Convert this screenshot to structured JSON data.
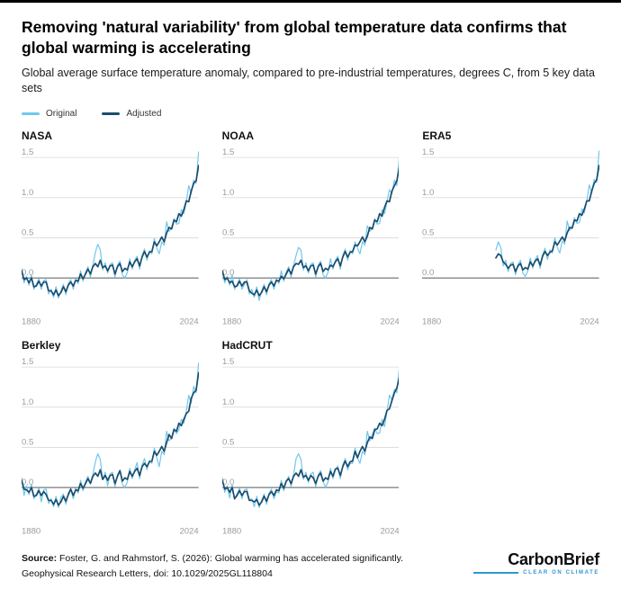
{
  "header": {
    "title": "Removing 'natural variability' from global temperature data confirms that global warming is accelerating",
    "subtitle": "Global average surface temperature anomaly, compared to pre-industrial temperatures, degrees C, from 5 key data sets"
  },
  "legend": [
    {
      "label": "Original",
      "color": "#72c7ec"
    },
    {
      "label": "Adjusted",
      "color": "#1b4d6e"
    }
  ],
  "footer": {
    "source_label": "Source:",
    "source_text": " Foster, G. and Rahmstorf, S. (2026): Global warming has accelerated significantly. Geophysical Research Letters, doi: 10.1029/2025GL118804",
    "logo_text": "CarbonBrief",
    "logo_tagline": "CLEAR ON CLIMATE",
    "brand_blue": "#2f96d2"
  },
  "chart_data": {
    "type": "line",
    "ylabel": "Temperature anomaly vs pre-industrial (degrees C)",
    "ylim": [
      -0.42,
      1.58
    ],
    "yticks": [
      0.0,
      0.5,
      1.0,
      1.5
    ],
    "xlim": [
      1880,
      2024
    ],
    "xtick_labels": [
      "1880",
      "2024"
    ],
    "grid": true,
    "legend_position": "top-left",
    "colors": {
      "original": "#72c7ec",
      "adjusted": "#1b4d6e",
      "grid_line": "#d9d9d9",
      "zero_line": "#55595c",
      "tick_text": "#9b9b9b"
    },
    "years_full": [
      1880,
      1882,
      1884,
      1886,
      1888,
      1890,
      1892,
      1894,
      1896,
      1898,
      1900,
      1902,
      1904,
      1906,
      1908,
      1910,
      1912,
      1914,
      1916,
      1918,
      1920,
      1922,
      1924,
      1926,
      1928,
      1930,
      1932,
      1934,
      1936,
      1938,
      1940,
      1942,
      1944,
      1946,
      1948,
      1950,
      1952,
      1954,
      1956,
      1958,
      1960,
      1962,
      1964,
      1966,
      1968,
      1970,
      1972,
      1974,
      1976,
      1978,
      1980,
      1982,
      1984,
      1986,
      1988,
      1990,
      1992,
      1994,
      1996,
      1998,
      2000,
      2002,
      2004,
      2006,
      2008,
      2010,
      2012,
      2014,
      2016,
      2018,
      2020,
      2022,
      2024
    ],
    "years_era5": [
      1940,
      1942,
      1944,
      1946,
      1948,
      1950,
      1952,
      1954,
      1956,
      1958,
      1960,
      1962,
      1964,
      1966,
      1968,
      1970,
      1972,
      1974,
      1976,
      1978,
      1980,
      1982,
      1984,
      1986,
      1988,
      1990,
      1992,
      1994,
      1996,
      1998,
      2000,
      2002,
      2004,
      2006,
      2008,
      2010,
      2012,
      2014,
      2016,
      2018,
      2020,
      2022,
      2024
    ],
    "panels": [
      {
        "title": "NASA",
        "years_key": "full",
        "original": [
          0.12,
          -0.06,
          0.02,
          -0.09,
          0.04,
          -0.14,
          -0.08,
          -0.01,
          -0.14,
          -0.03,
          -0.02,
          -0.2,
          -0.14,
          -0.24,
          -0.11,
          -0.25,
          -0.16,
          -0.08,
          -0.21,
          -0.07,
          -0.02,
          -0.14,
          -0.01,
          -0.07,
          0.09,
          -0.04,
          0.07,
          0.14,
          0.01,
          0.16,
          0.32,
          0.42,
          0.35,
          0.1,
          0.19,
          0.06,
          0.17,
          0.19,
          0.01,
          0.16,
          0.21,
          0.04,
          0.0,
          0.07,
          0.24,
          0.11,
          0.22,
          0.27,
          0.11,
          0.28,
          0.36,
          0.22,
          0.34,
          0.3,
          0.49,
          0.37,
          0.3,
          0.45,
          0.41,
          0.7,
          0.58,
          0.62,
          0.74,
          0.67,
          0.68,
          0.85,
          0.8,
          0.95,
          1.15,
          1.05,
          1.22,
          1.18,
          1.57
        ],
        "adjusted": [
          0.09,
          -0.02,
          0.0,
          -0.06,
          0.0,
          -0.11,
          -0.1,
          -0.04,
          -0.1,
          -0.05,
          -0.05,
          -0.16,
          -0.16,
          -0.21,
          -0.15,
          -0.22,
          -0.18,
          -0.11,
          -0.17,
          -0.09,
          -0.05,
          -0.1,
          -0.03,
          -0.04,
          0.05,
          -0.01,
          0.05,
          0.11,
          0.05,
          0.14,
          0.18,
          0.14,
          0.22,
          0.13,
          0.15,
          0.09,
          0.15,
          0.16,
          0.05,
          0.14,
          0.18,
          0.08,
          0.12,
          0.1,
          0.2,
          0.14,
          0.2,
          0.24,
          0.15,
          0.26,
          0.33,
          0.26,
          0.32,
          0.33,
          0.45,
          0.4,
          0.45,
          0.51,
          0.45,
          0.56,
          0.63,
          0.61,
          0.72,
          0.7,
          0.8,
          0.77,
          0.85,
          0.96,
          0.95,
          1.08,
          1.18,
          1.21,
          1.4
        ]
      },
      {
        "title": "NOAA",
        "years_key": "full",
        "original": [
          0.08,
          -0.06,
          0.02,
          -0.09,
          0.04,
          -0.14,
          -0.08,
          -0.01,
          -0.14,
          -0.08,
          -0.02,
          -0.2,
          -0.14,
          -0.24,
          -0.11,
          -0.28,
          -0.16,
          -0.08,
          -0.21,
          -0.07,
          -0.02,
          -0.14,
          -0.01,
          -0.07,
          0.09,
          -0.04,
          0.07,
          0.14,
          0.01,
          0.16,
          0.28,
          0.38,
          0.35,
          0.1,
          0.19,
          0.06,
          0.17,
          0.19,
          0.01,
          0.16,
          0.21,
          0.04,
          0.0,
          0.07,
          0.24,
          0.11,
          0.22,
          0.27,
          0.11,
          0.28,
          0.36,
          0.22,
          0.34,
          0.3,
          0.45,
          0.37,
          0.3,
          0.45,
          0.41,
          0.65,
          0.58,
          0.62,
          0.74,
          0.67,
          0.68,
          0.85,
          0.8,
          0.95,
          1.1,
          1.05,
          1.22,
          1.15,
          1.52
        ],
        "adjusted": [
          0.09,
          -0.02,
          0.0,
          -0.06,
          -0.04,
          -0.11,
          -0.1,
          -0.04,
          -0.1,
          -0.05,
          -0.05,
          -0.16,
          -0.19,
          -0.21,
          -0.15,
          -0.22,
          -0.18,
          -0.11,
          -0.17,
          -0.09,
          -0.05,
          -0.1,
          -0.03,
          -0.04,
          0.02,
          -0.01,
          0.05,
          0.11,
          0.05,
          0.14,
          0.18,
          0.17,
          0.22,
          0.13,
          0.15,
          0.09,
          0.15,
          0.16,
          0.05,
          0.14,
          0.18,
          0.08,
          0.12,
          0.1,
          0.16,
          0.14,
          0.2,
          0.24,
          0.15,
          0.26,
          0.33,
          0.26,
          0.32,
          0.33,
          0.41,
          0.4,
          0.45,
          0.51,
          0.45,
          0.52,
          0.63,
          0.61,
          0.72,
          0.7,
          0.8,
          0.77,
          0.88,
          0.96,
          0.95,
          1.08,
          1.15,
          1.21,
          1.38
        ]
      },
      {
        "title": "ERA5",
        "years_key": "era5",
        "original": [
          0.35,
          0.45,
          0.38,
          0.15,
          0.22,
          0.08,
          0.18,
          0.2,
          0.04,
          0.17,
          0.22,
          0.06,
          0.02,
          0.09,
          0.25,
          0.12,
          0.23,
          0.28,
          0.12,
          0.29,
          0.37,
          0.23,
          0.35,
          0.31,
          0.5,
          0.38,
          0.31,
          0.46,
          0.42,
          0.71,
          0.59,
          0.63,
          0.75,
          0.68,
          0.69,
          0.86,
          0.81,
          0.96,
          1.16,
          1.06,
          1.23,
          1.19,
          1.58
        ],
        "adjusted": [
          0.25,
          0.3,
          0.28,
          0.2,
          0.17,
          0.12,
          0.16,
          0.17,
          0.08,
          0.15,
          0.18,
          0.1,
          0.13,
          0.11,
          0.2,
          0.15,
          0.21,
          0.24,
          0.16,
          0.27,
          0.33,
          0.28,
          0.32,
          0.34,
          0.45,
          0.41,
          0.46,
          0.51,
          0.46,
          0.56,
          0.63,
          0.62,
          0.72,
          0.71,
          0.8,
          0.78,
          0.86,
          0.96,
          0.96,
          1.08,
          1.18,
          1.22,
          1.4
        ]
      },
      {
        "title": "Berkley",
        "years_key": "full",
        "original": [
          0.12,
          -0.1,
          0.02,
          -0.09,
          0.04,
          -0.14,
          -0.08,
          -0.01,
          -0.18,
          -0.03,
          -0.02,
          -0.2,
          -0.14,
          -0.24,
          -0.11,
          -0.25,
          -0.12,
          -0.08,
          -0.21,
          -0.07,
          -0.02,
          -0.14,
          -0.01,
          -0.07,
          0.09,
          -0.04,
          0.07,
          0.14,
          0.05,
          0.16,
          0.32,
          0.42,
          0.35,
          0.1,
          0.19,
          0.02,
          0.17,
          0.19,
          0.01,
          0.16,
          0.21,
          0.04,
          0.0,
          0.07,
          0.24,
          0.11,
          0.22,
          0.31,
          0.11,
          0.28,
          0.36,
          0.22,
          0.34,
          0.3,
          0.49,
          0.37,
          0.26,
          0.45,
          0.41,
          0.7,
          0.58,
          0.62,
          0.74,
          0.67,
          0.72,
          0.85,
          0.8,
          0.95,
          1.15,
          1.05,
          1.26,
          1.18,
          1.55
        ],
        "adjusted": [
          0.09,
          -0.02,
          -0.03,
          -0.06,
          0.0,
          -0.11,
          -0.1,
          -0.04,
          -0.1,
          -0.05,
          -0.09,
          -0.16,
          -0.16,
          -0.21,
          -0.15,
          -0.22,
          -0.18,
          -0.11,
          -0.17,
          -0.09,
          -0.02,
          -0.1,
          -0.03,
          -0.04,
          0.05,
          -0.01,
          0.05,
          0.11,
          0.05,
          0.14,
          0.18,
          0.14,
          0.22,
          0.1,
          0.15,
          0.09,
          0.15,
          0.16,
          0.05,
          0.14,
          0.21,
          0.08,
          0.12,
          0.1,
          0.2,
          0.14,
          0.2,
          0.24,
          0.15,
          0.26,
          0.3,
          0.26,
          0.32,
          0.33,
          0.45,
          0.4,
          0.45,
          0.51,
          0.45,
          0.56,
          0.66,
          0.61,
          0.72,
          0.7,
          0.8,
          0.77,
          0.85,
          0.92,
          0.95,
          1.11,
          1.18,
          1.21,
          1.43
        ]
      },
      {
        "title": "HadCRUT",
        "years_key": "full",
        "original": [
          0.12,
          -0.06,
          0.02,
          -0.13,
          0.04,
          -0.14,
          -0.08,
          -0.01,
          -0.14,
          -0.03,
          -0.02,
          -0.16,
          -0.14,
          -0.24,
          -0.11,
          -0.25,
          -0.16,
          -0.08,
          -0.21,
          -0.07,
          -0.02,
          -0.14,
          -0.05,
          -0.07,
          0.09,
          -0.04,
          0.07,
          0.14,
          0.01,
          0.16,
          0.36,
          0.42,
          0.35,
          0.1,
          0.19,
          0.06,
          0.17,
          0.19,
          0.01,
          0.16,
          0.21,
          0.08,
          0.0,
          0.07,
          0.24,
          0.11,
          0.22,
          0.27,
          0.11,
          0.28,
          0.36,
          0.22,
          0.3,
          0.3,
          0.49,
          0.37,
          0.3,
          0.45,
          0.41,
          0.7,
          0.58,
          0.66,
          0.74,
          0.67,
          0.68,
          0.85,
          0.76,
          0.95,
          1.15,
          1.09,
          1.22,
          1.18,
          1.5
        ],
        "adjusted": [
          0.09,
          -0.02,
          0.0,
          -0.06,
          0.0,
          -0.14,
          -0.1,
          -0.04,
          -0.1,
          -0.05,
          -0.05,
          -0.16,
          -0.16,
          -0.18,
          -0.15,
          -0.22,
          -0.18,
          -0.11,
          -0.17,
          -0.09,
          -0.05,
          -0.1,
          -0.03,
          -0.04,
          0.05,
          -0.01,
          0.08,
          0.11,
          0.05,
          0.14,
          0.18,
          0.14,
          0.22,
          0.13,
          0.15,
          0.09,
          0.15,
          0.12,
          0.05,
          0.14,
          0.18,
          0.08,
          0.12,
          0.1,
          0.2,
          0.14,
          0.23,
          0.24,
          0.15,
          0.26,
          0.33,
          0.26,
          0.32,
          0.33,
          0.45,
          0.37,
          0.45,
          0.51,
          0.45,
          0.56,
          0.63,
          0.61,
          0.72,
          0.73,
          0.8,
          0.77,
          0.85,
          0.96,
          0.98,
          1.08,
          1.18,
          1.24,
          1.37
        ]
      }
    ]
  }
}
